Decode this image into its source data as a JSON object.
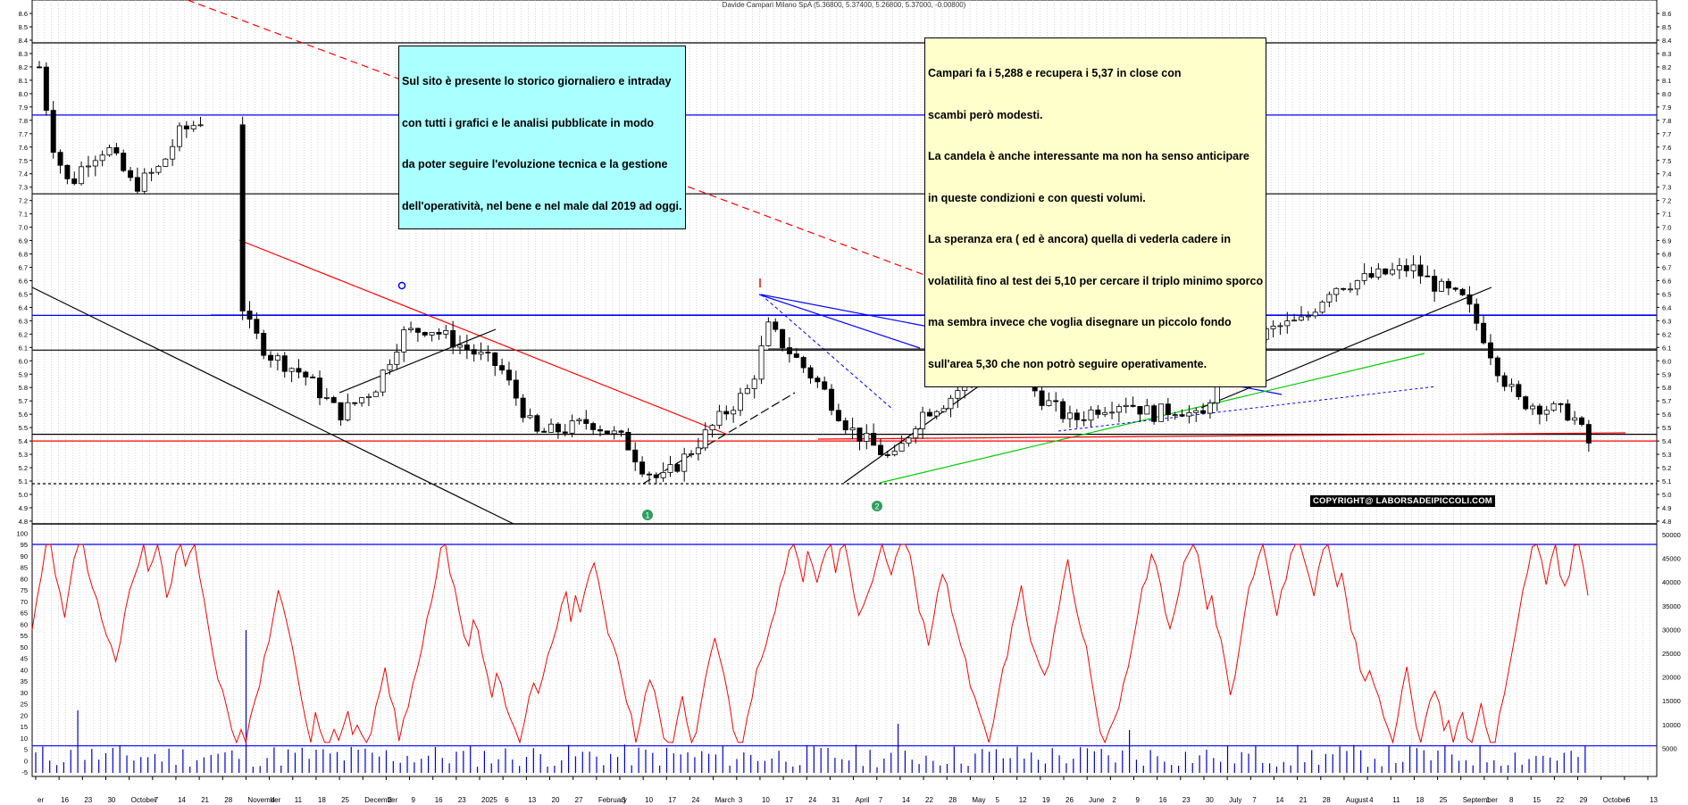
{
  "title": "Davide Campari Milano SpA (5.36800, 5.37400, 5.26800, 5.37000, -0.00800)",
  "note_left": [
    "Sul sito è presente lo storico giornaliero e intraday",
    "con tutti i grafici e le analisi pubblicate in modo",
    "da poter seguire l'evoluzione tecnica e la gestione",
    "dell'operatività, nel bene e nel male dal 2019 ad oggi."
  ],
  "note_right": [
    "Campari fa i 5,288 e recupera i 5,37 in close con",
    "scambi però modesti.",
    "La candela è anche interessante ma non ha senso anticipare",
    "in queste condizioni e con questi volumi.",
    "La speranza era ( ed è ancora) quella di vederla cadere in",
    "volatilità fino al test dei 5,10 per cercare il triplo minimo sporco",
    "ma sembra invece che voglia disegnare un piccolo fondo",
    "sull'area 5,30 che non potrò seguire operativamente."
  ],
  "copyright": "COPYRIGHT@ LABORSADEIPICCOLI.COM",
  "colors": {
    "up": "#ffffff",
    "down": "#000000",
    "volume": "#0000cc",
    "oscillator": "#ff0000",
    "support": "#0000ff",
    "trend_red": "#ff0000",
    "trend_green": "#00cc00"
  },
  "chart_data": [
    {
      "type": "candlestick",
      "panel": "price",
      "ylim": [
        4.75,
        8.9
      ],
      "y_ticks": [
        "4.8",
        "4.9",
        "5.0",
        "5.1",
        "5.2",
        "5.3",
        "5.4",
        "5.5",
        "5.6",
        "5.7",
        "5.8",
        "5.9",
        "6.0",
        "6.1",
        "6.2",
        "6.3",
        "6.4",
        "6.5",
        "6.6",
        "6.7",
        "6.8",
        "6.9",
        "7.0",
        "7.1",
        "7.2",
        "7.3",
        "7.4",
        "7.5",
        "7.6",
        "7.7",
        "7.8",
        "7.9",
        "8.0",
        "8.1",
        "8.2",
        "8.3",
        "8.4",
        "8.5",
        "8.6"
      ],
      "x_labels": [
        "er",
        "16",
        "23",
        "30",
        "October",
        "7",
        "14",
        "21",
        "28",
        "November",
        "4",
        "11",
        "18",
        "25",
        "December",
        "2",
        "9",
        "16",
        "23",
        "2025",
        "6",
        "13",
        "20",
        "27",
        "February",
        "3",
        "10",
        "17",
        "24",
        "March",
        "3",
        "10",
        "17",
        "24",
        "31",
        "April",
        "7",
        "14",
        "22",
        "28",
        "May",
        "5",
        "12",
        "19",
        "26",
        "June",
        "2",
        "9",
        "16",
        "23",
        "30",
        "July",
        "7",
        "14",
        "21",
        "28",
        "August",
        "4",
        "11",
        "18",
        "25",
        "September",
        "1",
        "8",
        "15",
        "22",
        "29",
        "October",
        "6",
        "13"
      ],
      "horizontal_levels": [
        {
          "value": 8.38,
          "color": "#000000"
        },
        {
          "value": 7.84,
          "color": "#0000ff"
        },
        {
          "value": 7.25,
          "color": "#000000"
        },
        {
          "value": 6.34,
          "color": "#0000ff"
        },
        {
          "value": 6.08,
          "color": "#000000"
        },
        {
          "value": 5.45,
          "color": "#000000"
        },
        {
          "value": 5.4,
          "color": "#ff0000"
        },
        {
          "value": 5.08,
          "color": "#000000",
          "dashed": true
        }
      ],
      "markers": [
        "1",
        "2"
      ],
      "ohlc": []
    },
    {
      "type": "bar+line",
      "panel": "volume",
      "left_ticks": [
        "-5",
        "0",
        "5",
        "10",
        "15",
        "20",
        "25",
        "30",
        "35",
        "40",
        "45",
        "50",
        "55",
        "60",
        "65",
        "70",
        "75",
        "80",
        "85",
        "90",
        "95",
        "100"
      ],
      "right_ticks": [
        "5000",
        "10000",
        "15000",
        "20000",
        "25000",
        "30000",
        "35000",
        "40000",
        "45000",
        "50000"
      ],
      "series": []
    }
  ]
}
